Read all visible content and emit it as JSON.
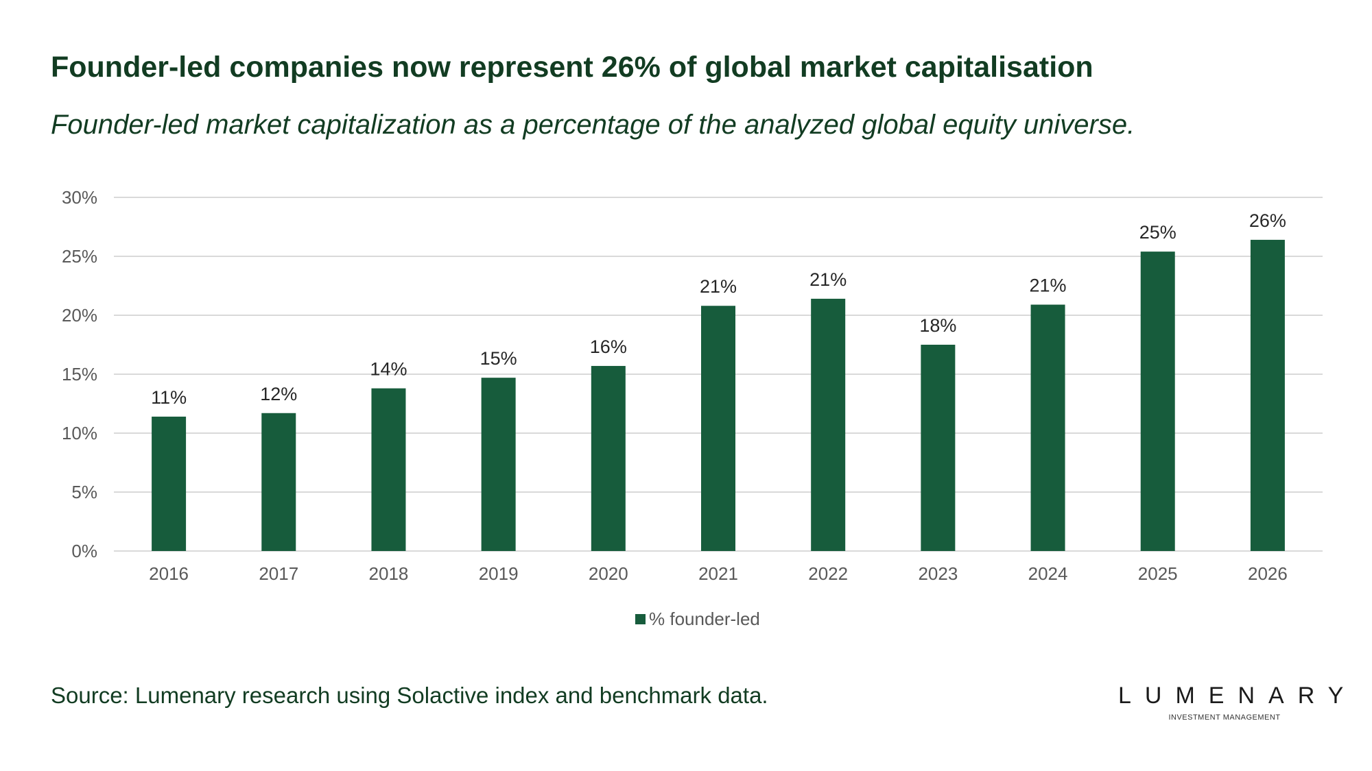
{
  "title": "Founder-led companies now represent 26% of global market capitalisation",
  "subtitle": "Founder-led market capitalization as a percentage of the analyzed global equity universe.",
  "source": "Source: Lumenary research using Solactive index and benchmark data.",
  "logo": {
    "wordmark": "LUMENARY",
    "tagline": "INVESTMENT MANAGEMENT",
    "accent_color": "#a8322a"
  },
  "colors": {
    "bar": "#175c3c",
    "title": "#123c22",
    "grid": "#d9d9d9"
  },
  "chart_data": {
    "type": "bar",
    "categories": [
      "2016",
      "2017",
      "2018",
      "2019",
      "2020",
      "2021",
      "2022",
      "2023",
      "2024",
      "2025",
      "2026"
    ],
    "series": [
      {
        "name": "% founder-led",
        "values": [
          11.4,
          11.7,
          13.8,
          14.7,
          15.7,
          20.8,
          21.4,
          17.5,
          20.9,
          25.4,
          26.4
        ],
        "labels": [
          "11%",
          "12%",
          "14%",
          "15%",
          "16%",
          "21%",
          "21%",
          "18%",
          "21%",
          "25%",
          "26%"
        ]
      }
    ],
    "ylim": [
      0,
      30
    ],
    "yticks": [
      0,
      5,
      10,
      15,
      20,
      25,
      30
    ],
    "ytick_labels": [
      "0%",
      "5%",
      "10%",
      "15%",
      "20%",
      "25%",
      "30%"
    ],
    "grid": true,
    "legend": "bottom-center",
    "xlabel": "",
    "ylabel": ""
  }
}
